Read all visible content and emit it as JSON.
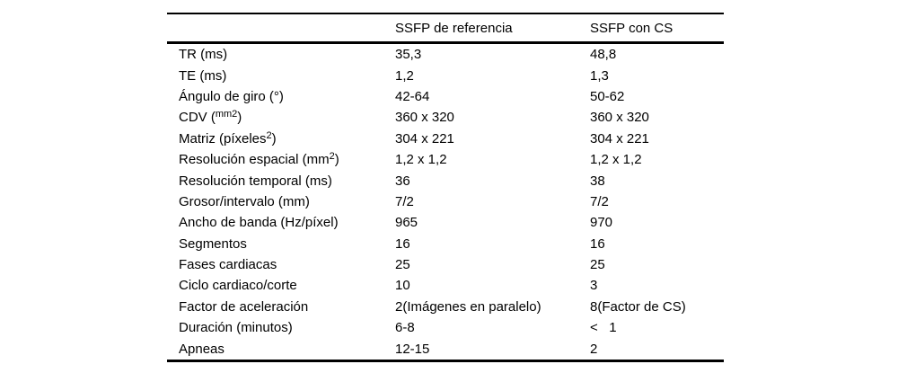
{
  "table": {
    "header": {
      "col_label": "",
      "col_ref": "SSFP de referencia",
      "col_cs": "SSFP con CS"
    },
    "rows": [
      {
        "label": {
          "pre": "TR (ms)",
          "sup": "",
          "post": ""
        },
        "ref": "35,3",
        "cs": "48,8"
      },
      {
        "label": {
          "pre": "TE (ms)",
          "sup": "",
          "post": ""
        },
        "ref": "1,2",
        "cs": "1,3"
      },
      {
        "label": {
          "pre": "Ángulo de giro (°)",
          "sup": "",
          "post": ""
        },
        "ref": "42-64",
        "cs": "50-62"
      },
      {
        "label": {
          "pre": "CDV (",
          "sup": "mm2",
          "post": ")"
        },
        "ref": "360 x 320",
        "cs": "360 x 320"
      },
      {
        "label": {
          "pre": "Matriz (píxeles",
          "sup": "2",
          "post": ")"
        },
        "ref": "304 x 221",
        "cs": "304 x 221"
      },
      {
        "label": {
          "pre": "Resolución espacial (mm",
          "sup": "2",
          "post": ")"
        },
        "ref": "1,2 x 1,2",
        "cs": "1,2 x 1,2"
      },
      {
        "label": {
          "pre": "Resolución temporal (ms)",
          "sup": "",
          "post": ""
        },
        "ref": "36",
        "cs": "38"
      },
      {
        "label": {
          "pre": "Grosor/intervalo (mm)",
          "sup": "",
          "post": ""
        },
        "ref": "7/2",
        "cs": "7/2"
      },
      {
        "label": {
          "pre": "Ancho de banda (Hz/píxel)",
          "sup": "",
          "post": ""
        },
        "ref": "965",
        "cs": "970"
      },
      {
        "label": {
          "pre": "Segmentos",
          "sup": "",
          "post": ""
        },
        "ref": "16",
        "cs": "16"
      },
      {
        "label": {
          "pre": "Fases cardiacas",
          "sup": "",
          "post": ""
        },
        "ref": "25",
        "cs": "25"
      },
      {
        "label": {
          "pre": "Ciclo cardiaco/corte",
          "sup": "",
          "post": ""
        },
        "ref": "10",
        "cs": "3"
      },
      {
        "label": {
          "pre": "Factor de aceleración",
          "sup": "",
          "post": ""
        },
        "ref": "2(Imágenes en paralelo)",
        "cs": "8(Factor de CS)"
      },
      {
        "label": {
          "pre": "Duración (minutos)",
          "sup": "",
          "post": ""
        },
        "ref": "6-8",
        "cs": "<   1"
      },
      {
        "label": {
          "pre": "Apneas",
          "sup": "",
          "post": ""
        },
        "ref": "12-15",
        "cs": "2"
      }
    ]
  },
  "colors": {
    "text": "#000000",
    "rule": "#000000",
    "background": "#ffffff"
  }
}
